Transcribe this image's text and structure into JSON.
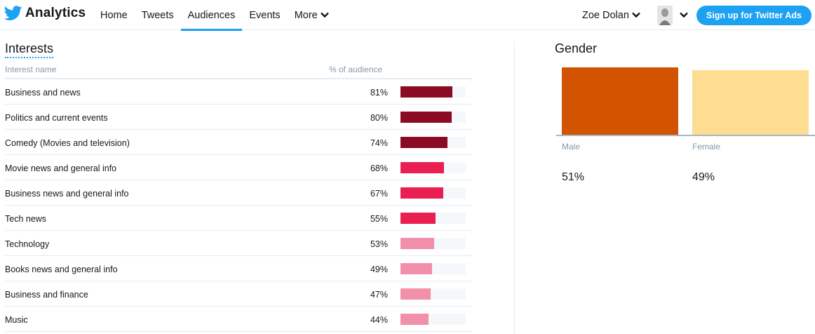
{
  "header": {
    "brand": "Analytics",
    "nav": [
      {
        "label": "Home",
        "active": false
      },
      {
        "label": "Tweets",
        "active": false
      },
      {
        "label": "Audiences",
        "active": true
      },
      {
        "label": "Events",
        "active": false
      },
      {
        "label": "More",
        "active": false
      }
    ],
    "user_name": "Zoe Dolan",
    "signup_label": "Sign up for Twitter Ads",
    "brand_color": "#1da1f2"
  },
  "interests": {
    "title": "Interests",
    "col_name": "Interest name",
    "col_pct": "% of audience",
    "rows": [
      {
        "name": "Business and news",
        "pct_label": "81%",
        "value": 81,
        "color": "#8b0b24"
      },
      {
        "name": "Politics and current events",
        "pct_label": "80%",
        "value": 80,
        "color": "#8b0b24"
      },
      {
        "name": "Comedy (Movies and television)",
        "pct_label": "74%",
        "value": 74,
        "color": "#8b0b24"
      },
      {
        "name": "Movie news and general info",
        "pct_label": "68%",
        "value": 68,
        "color": "#e91f52"
      },
      {
        "name": "Business news and general info",
        "pct_label": "67%",
        "value": 67,
        "color": "#e91f52"
      },
      {
        "name": "Tech news",
        "pct_label": "55%",
        "value": 55,
        "color": "#e91f52"
      },
      {
        "name": "Technology",
        "pct_label": "53%",
        "value": 53,
        "color": "#f28fa9"
      },
      {
        "name": "Books news and general info",
        "pct_label": "49%",
        "value": 49,
        "color": "#f28fa9"
      },
      {
        "name": "Business and finance",
        "pct_label": "47%",
        "value": 47,
        "color": "#f28fa9"
      },
      {
        "name": "Music",
        "pct_label": "44%",
        "value": 44,
        "color": "#f28fa9"
      }
    ]
  },
  "chart_data": {
    "type": "bar",
    "title": "Gender",
    "categories": [
      "Male",
      "Female"
    ],
    "values": [
      51,
      49
    ],
    "value_labels": [
      "51%",
      "49%"
    ],
    "colors": [
      "#d35400",
      "#fddd92"
    ],
    "ylim": [
      0,
      51
    ]
  }
}
